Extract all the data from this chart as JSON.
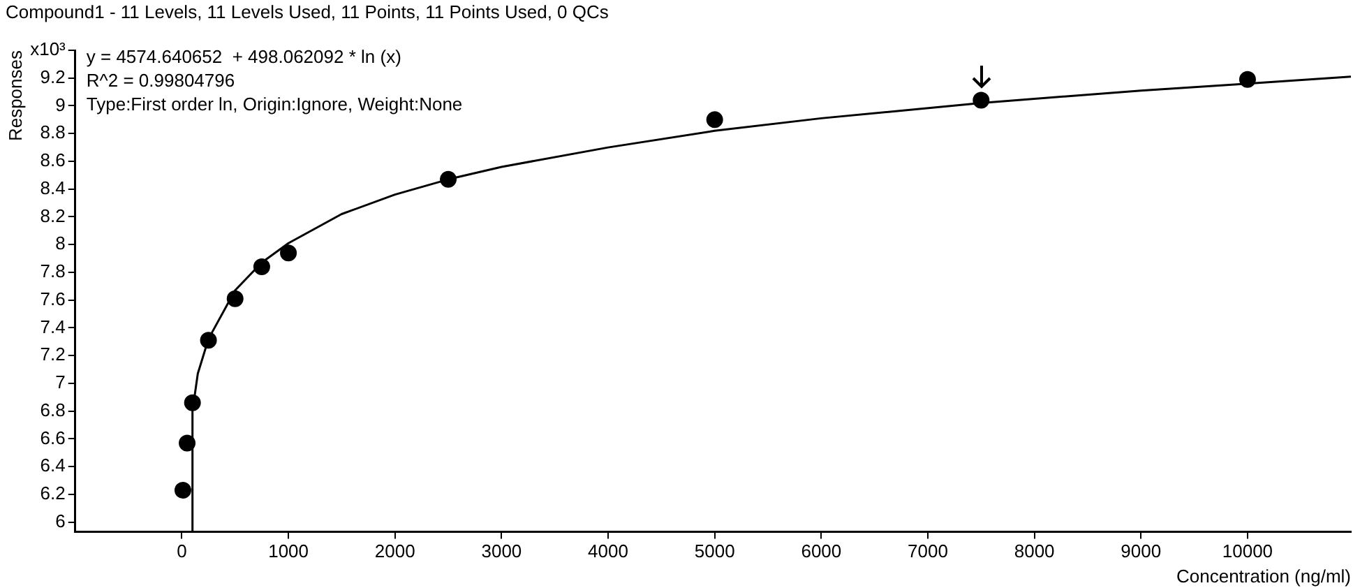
{
  "chart_data": {
    "type": "scatter",
    "title": "Compound1 - 11 Levels, 11 Levels Used, 11 Points, 11 Points Used, 0 QCs",
    "xlabel": "Concentration (ng/ml)",
    "ylabel": "Responses",
    "annotations": [
      "y = 4574.640652  + 498.062092 * ln (x)",
      "R^2 = 0.99804796",
      "Type:First order ln, Origin:Ignore, Weight:None"
    ],
    "series": [
      {
        "color": "#000000",
        "marker": "circle",
        "x": [
          10,
          50,
          100,
          250,
          500,
          750,
          1000,
          2500,
          5000,
          7500,
          10000
        ],
        "values": [
          6.23,
          6.57,
          6.86,
          7.31,
          7.61,
          7.84,
          7.94,
          8.47,
          8.9,
          9.04,
          9.19
        ]
      },
      {
        "type": "line",
        "color": "#000000",
        "marker": "none",
        "x": [
          95,
          100,
          150,
          250,
          500,
          750,
          1000,
          1500,
          2000,
          2500,
          3000,
          4000,
          5000,
          6000,
          7500,
          9000,
          10000,
          10970
        ],
        "values": [
          5.93,
          6.8,
          7.07,
          7.32,
          7.67,
          7.87,
          8.01,
          8.22,
          8.36,
          8.47,
          8.56,
          8.7,
          8.82,
          8.91,
          9.02,
          9.11,
          9.16,
          9.21
        ]
      }
    ],
    "xlim": [
      -1000,
      10970
    ],
    "xticks": [
      0,
      1000,
      2000,
      3000,
      4000,
      5000,
      6000,
      7000,
      8000,
      9000,
      10000
    ],
    "ylim": [
      5.93,
      9.4
    ],
    "yticks": [
      6,
      6.2,
      6.4,
      6.6,
      6.8,
      7,
      7.2,
      7.4,
      7.6,
      7.8,
      8,
      8.2,
      8.4,
      8.6,
      8.8,
      9,
      9.2,
      {
        "value": 9.4,
        "label": "x10³"
      }
    ],
    "grid": false,
    "legend": false
  }
}
